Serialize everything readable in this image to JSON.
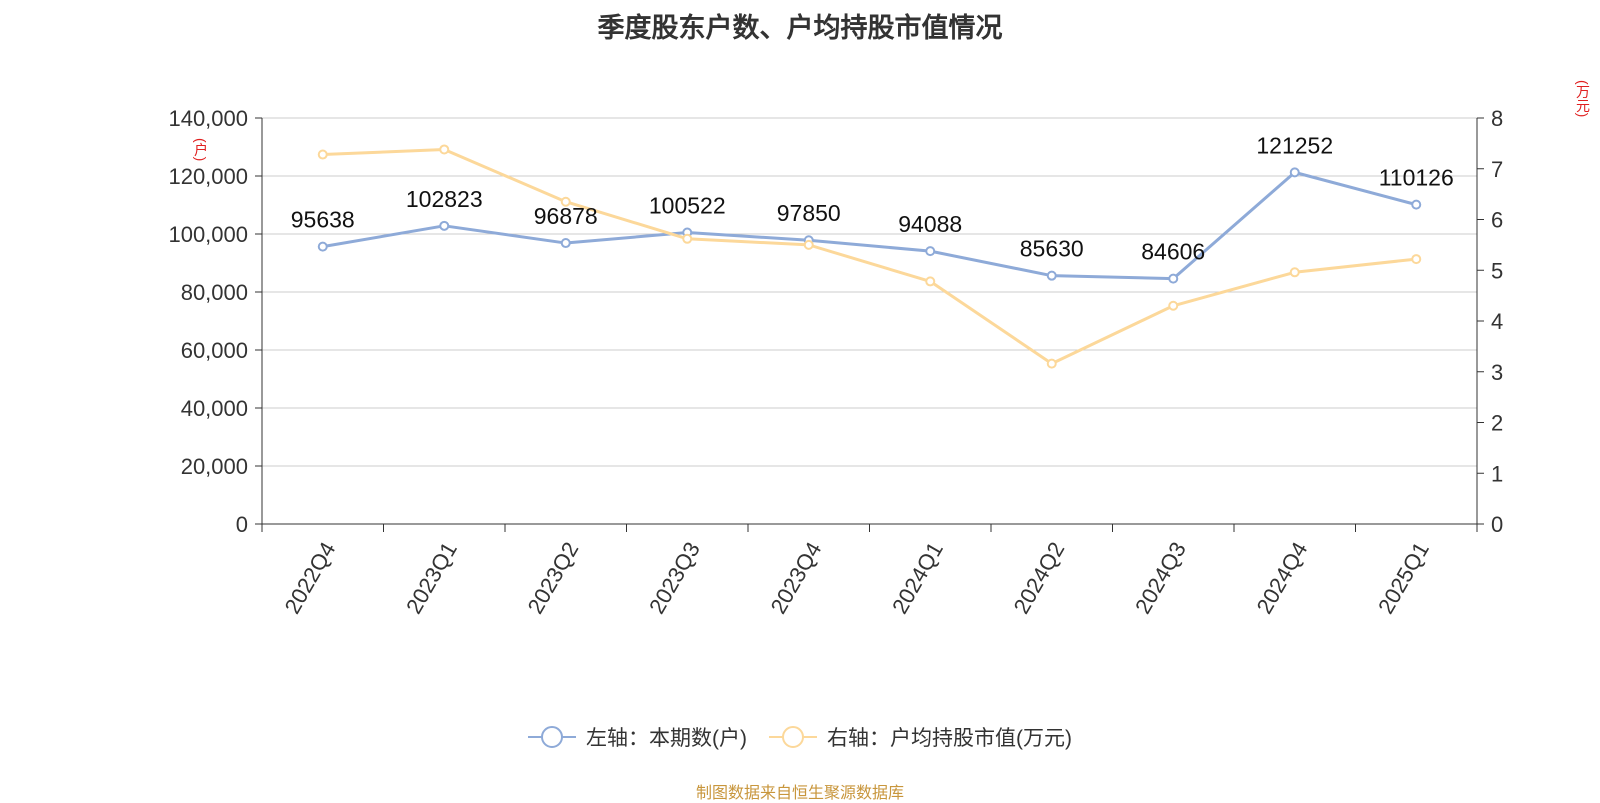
{
  "chart_data": {
    "type": "line",
    "title": "季度股东户数、户均持股市值情况",
    "categories": [
      "2022Q4",
      "2023Q1",
      "2023Q2",
      "2023Q3",
      "2023Q4",
      "2024Q1",
      "2024Q2",
      "2024Q3",
      "2024Q4",
      "2025Q1"
    ],
    "left_axis": {
      "unit": "(户)",
      "ylim": [
        0,
        140000
      ],
      "ticks": [
        "0",
        "20,000",
        "40,000",
        "60,000",
        "80,000",
        "100,000",
        "120,000",
        "140,000"
      ]
    },
    "right_axis": {
      "unit": "(万元)",
      "ylim": [
        0,
        8
      ],
      "ticks": [
        "0",
        "1",
        "2",
        "3",
        "4",
        "5",
        "6",
        "7",
        "8"
      ]
    },
    "series": [
      {
        "name": "左轴：本期数(户)",
        "axis": "left",
        "color": "#8eaad8",
        "values": [
          95638,
          102823,
          96878,
          100522,
          97850,
          94088,
          85630,
          84606,
          121252,
          110126
        ],
        "labels": [
          "95638",
          "102823",
          "96878",
          "100522",
          "97850",
          "94088",
          "85630",
          "84606",
          "121252",
          "110126"
        ]
      },
      {
        "name": "右轴：户均持股市值(万元)",
        "axis": "right",
        "color": "#fcd89a",
        "values": [
          7.28,
          7.38,
          6.35,
          5.62,
          5.5,
          4.78,
          3.16,
          4.3,
          4.96,
          5.22
        ]
      }
    ],
    "grid": true,
    "legend_position": "bottom"
  },
  "source": "制图数据来自恒生聚源数据库"
}
